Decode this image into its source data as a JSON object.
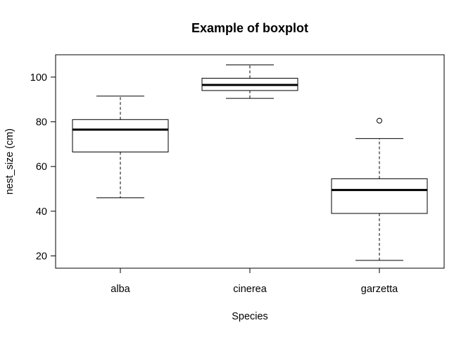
{
  "chart_data": {
    "type": "boxplot",
    "title": "Example of boxplot",
    "xlabel": "Species",
    "ylabel": "nest_size (cm)",
    "ylim": [
      14.5,
      110
    ],
    "yticks": [
      20,
      40,
      60,
      80,
      100
    ],
    "grid": false,
    "categories": [
      "alba",
      "cinerea",
      "garzetta"
    ],
    "boxes": [
      {
        "category": "alba",
        "whisker_low": 46,
        "q1": 66.5,
        "median": 76.5,
        "q3": 81,
        "whisker_high": 91.5,
        "outliers": []
      },
      {
        "category": "cinerea",
        "whisker_low": 90.5,
        "q1": 94,
        "median": 96.5,
        "q3": 99.5,
        "whisker_high": 105.5,
        "outliers": []
      },
      {
        "category": "garzetta",
        "whisker_low": 18,
        "q1": 39,
        "median": 49.5,
        "q3": 54.5,
        "whisker_high": 72.5,
        "outliers": [
          80.5
        ]
      }
    ]
  }
}
